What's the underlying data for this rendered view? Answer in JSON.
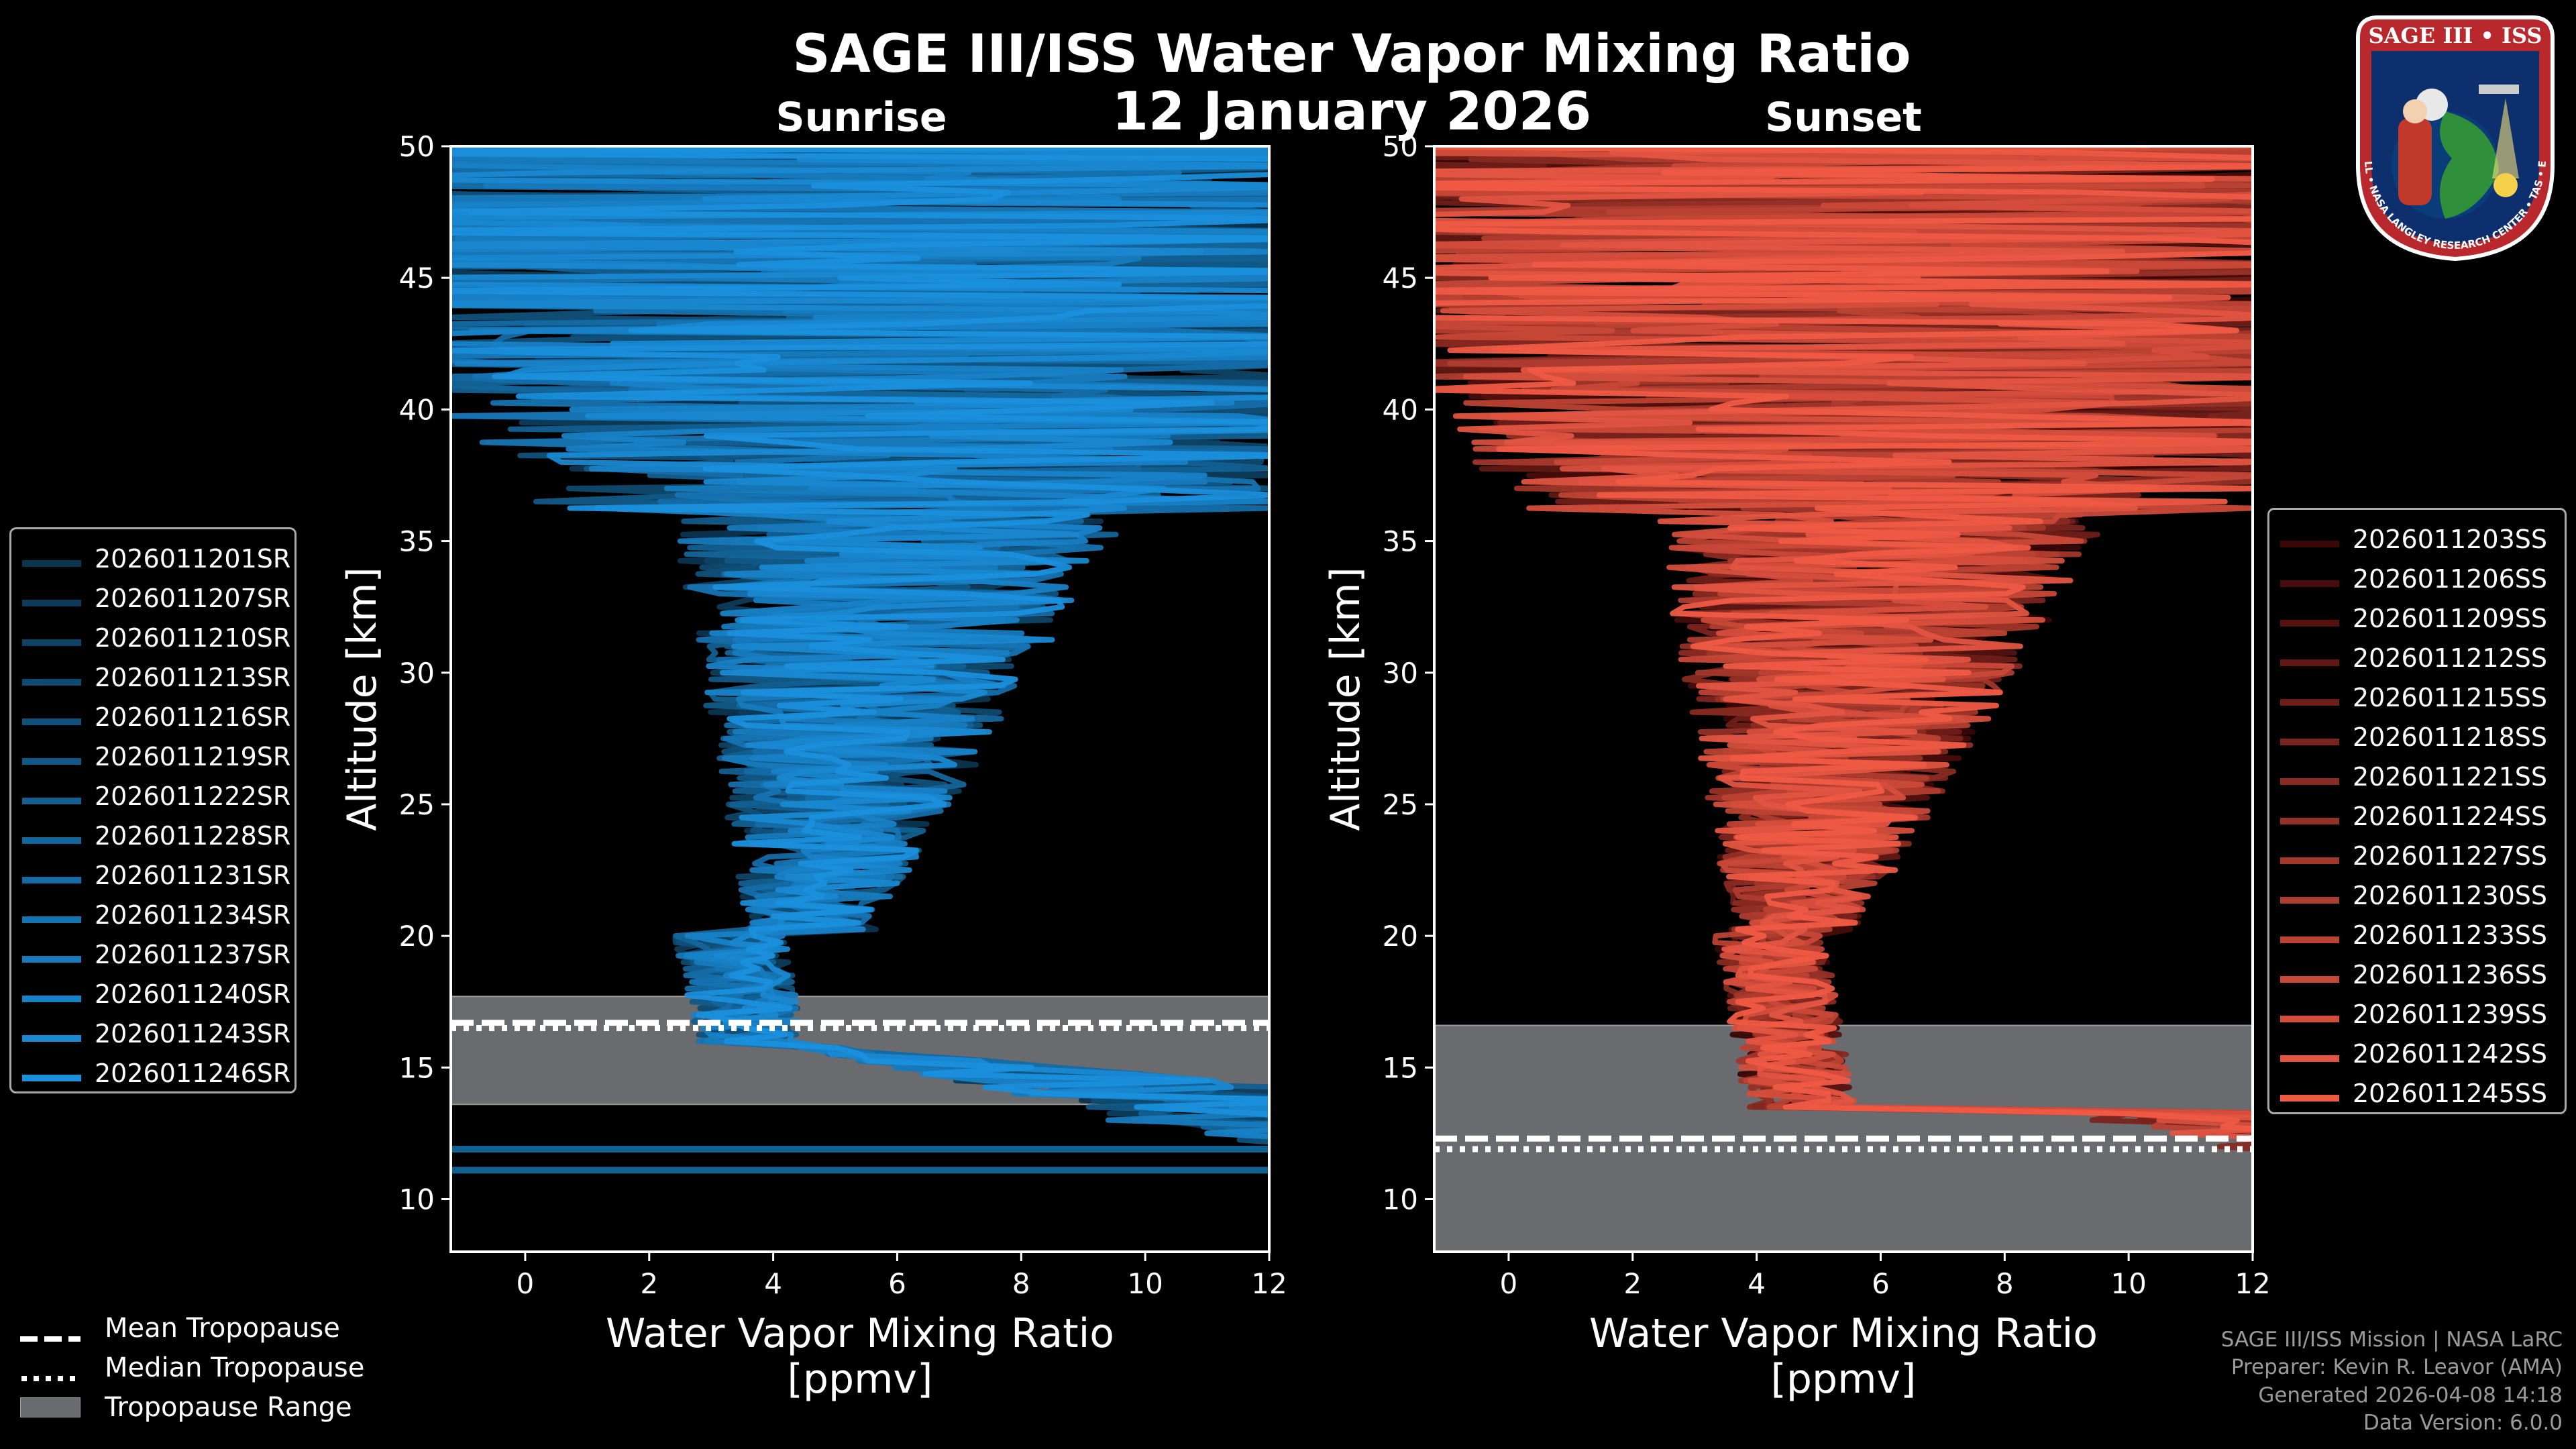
{
  "title": "SAGE III/ISS Water Vapor Mixing Ratio",
  "date": "12 January 2026",
  "panels": {
    "left_label": "Sunrise",
    "right_label": "Sunset"
  },
  "colors": {
    "sunrise": "#1a8fdc",
    "sunset": "#ef5a45",
    "tropopause_fill": "#6a6b6e"
  },
  "chart_data": [
    {
      "type": "line",
      "name": "Sunrise",
      "title": "Sunrise",
      "xlabel": "Water Vapor Mixing Ratio",
      "xlabel_units": "[ppmv]",
      "ylabel": "Altitude [km]",
      "xlim": [
        -1.2,
        12
      ],
      "ylim": [
        8,
        50
      ],
      "xticks": [
        0,
        2,
        4,
        6,
        8,
        10,
        12
      ],
      "yticks": [
        10,
        15,
        20,
        25,
        30,
        35,
        40,
        45,
        50
      ],
      "tropopause": {
        "mean_km": 16.7,
        "median_km": 16.5,
        "range_km": [
          13.6,
          17.7
        ]
      },
      "legend_position": "left",
      "series_names": [
        "2026011201SR",
        "2026011207SR",
        "2026011210SR",
        "2026011213SR",
        "2026011216SR",
        "2026011219SR",
        "2026011222SR",
        "2026011228SR",
        "2026011231SR",
        "2026011234SR",
        "2026011237SR",
        "2026011240SR",
        "2026011243SR",
        "2026011246SR"
      ]
    },
    {
      "type": "line",
      "name": "Sunset",
      "title": "Sunset",
      "xlabel": "Water Vapor Mixing Ratio",
      "xlabel_units": "[ppmv]",
      "ylabel": "Altitude [km]",
      "xlim": [
        -1.2,
        12
      ],
      "ylim": [
        8,
        50
      ],
      "xticks": [
        0,
        2,
        4,
        6,
        8,
        10,
        12
      ],
      "yticks": [
        10,
        15,
        20,
        25,
        30,
        35,
        40,
        45,
        50
      ],
      "tropopause": {
        "mean_km": 12.3,
        "median_km": 11.9,
        "range_km": [
          8,
          16.6
        ]
      },
      "legend_position": "right",
      "series_names": [
        "2026011203SS",
        "2026011206SS",
        "2026011209SS",
        "2026011212SS",
        "2026011215SS",
        "2026011218SS",
        "2026011221SS",
        "2026011224SS",
        "2026011227SS",
        "2026011230SS",
        "2026011233SS",
        "2026011236SS",
        "2026011239SS",
        "2026011242SS",
        "2026011245SS"
      ]
    }
  ],
  "tropopause_legend": {
    "mean": "Mean Tropopause",
    "median": "Median Tropopause",
    "range": "Tropopause Range"
  },
  "credits": {
    "line1": "SAGE III/ISS Mission | NASA LaRC",
    "line2": "Preparer: Kevin R. Leavor (AMA)",
    "line3": "Generated 2026-04-08 14:18",
    "line4": "Data Version: 6.0.0"
  },
  "logo": {
    "top_text": "SAGE III • ISS",
    "ring_text": "BALL • NASA LANGLEY RESEARCH CENTER • TAS • ESA"
  }
}
